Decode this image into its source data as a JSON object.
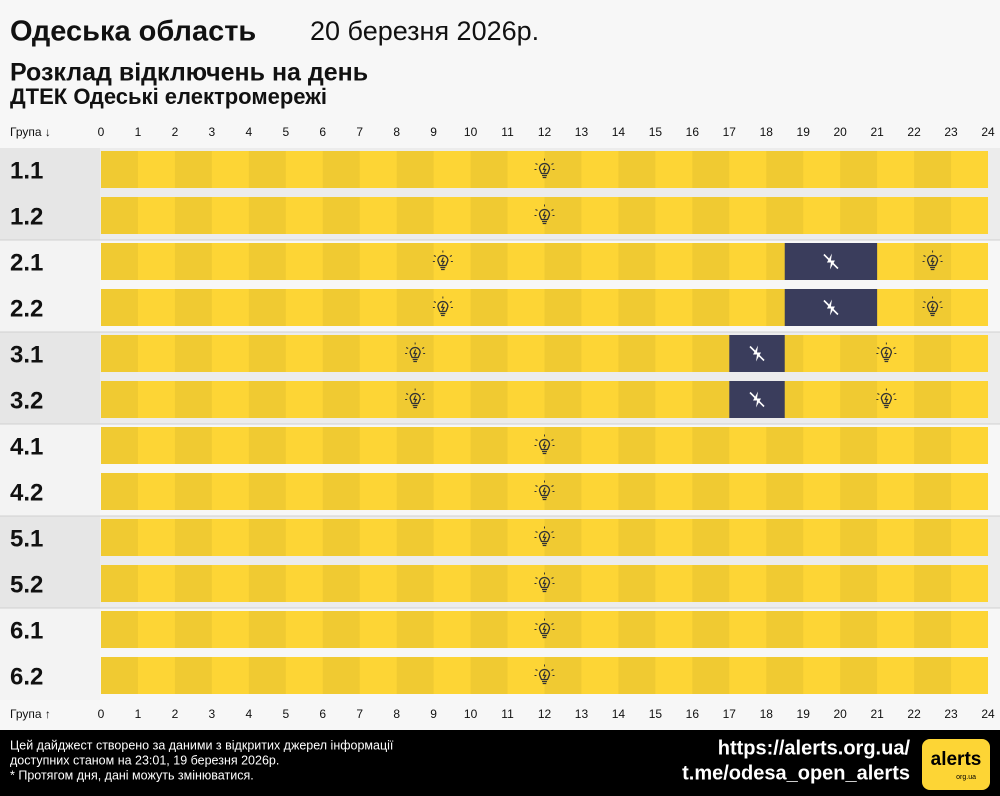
{
  "header": {
    "region": "Одеська область",
    "date": "20 березня 2026р.",
    "title": "Розклад відключень на день",
    "provider": "ДТЕК Одеські електромережі"
  },
  "chart_data": {
    "type": "timeline",
    "axis_label_top": "Група ↓",
    "axis_label_bottom": "Група ↑",
    "xlim": [
      0,
      24
    ],
    "xticks": [
      0,
      1,
      2,
      3,
      4,
      5,
      6,
      7,
      8,
      9,
      10,
      11,
      12,
      13,
      14,
      15,
      16,
      17,
      18,
      19,
      20,
      21,
      22,
      23,
      24
    ],
    "categories": [
      "1.1",
      "1.2",
      "2.1",
      "2.2",
      "3.1",
      "3.2",
      "4.1",
      "4.2",
      "5.1",
      "5.2",
      "6.1",
      "6.2"
    ],
    "outages": [
      [],
      [],
      [
        [
          18.5,
          21
        ]
      ],
      [
        [
          18.5,
          21
        ]
      ],
      [
        [
          17,
          18.5
        ]
      ],
      [
        [
          17,
          18.5
        ]
      ],
      [],
      [],
      [],
      [],
      [],
      []
    ],
    "on_color": "#fdd535",
    "off_color": "#3a3d5c"
  },
  "footer": {
    "note_lines": [
      "Цей дайджест створено за даними з відкритих джерел інформації",
      "доступних станом на 23:01, 19 березня 2026р.",
      "* Протягом дня, дані можуть змінюватися."
    ],
    "site": "https://alerts.org.ua/",
    "channel": "t.me/odesa_open_alerts",
    "logo": "alerts",
    "logo_sub": "org.ua"
  }
}
